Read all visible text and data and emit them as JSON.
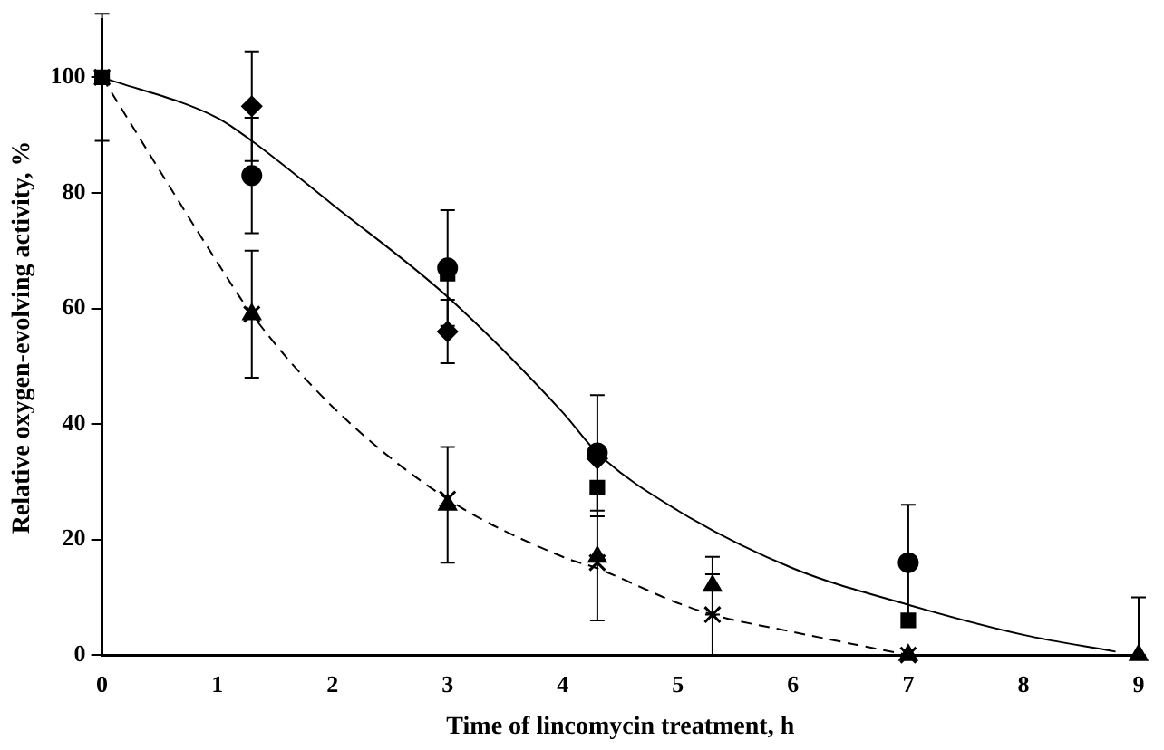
{
  "chart_data": {
    "type": "scatter",
    "xlabel": "Time of lincomycin treatment, h",
    "ylabel": "Relative oxygen-evolving activity, %",
    "xlim": [
      0,
      9
    ],
    "xticks": [
      0,
      1,
      2,
      3,
      4,
      5,
      6,
      7,
      8,
      9
    ],
    "ylim": [
      0,
      110
    ],
    "yticks": [
      0,
      20,
      40,
      60,
      80,
      100
    ],
    "grid": false,
    "legend": false,
    "series": [
      {
        "type": "line",
        "color": "#000000",
        "marker": "none",
        "line_style": "solid",
        "x": [
          0,
          1,
          1.3,
          2,
          3,
          4,
          4.3,
          5,
          6,
          7,
          8,
          8.8
        ],
        "values": [
          100,
          93,
          89,
          78,
          62,
          42,
          35,
          25,
          15,
          8.7,
          3.5,
          0.6
        ]
      },
      {
        "type": "line",
        "color": "#000000",
        "marker": "none",
        "line_style": "dashed",
        "x": [
          0,
          1,
          1.3,
          2,
          3,
          4,
          4.3,
          5,
          5.3,
          6,
          7
        ],
        "values": [
          100,
          68,
          59,
          43,
          27,
          17,
          15,
          9,
          7,
          4,
          0
        ]
      },
      {
        "color": "#000000",
        "marker": "diamond",
        "x": [
          1.3,
          3,
          4.3
        ],
        "values": [
          95,
          56,
          34
        ],
        "errors": [
          9.5,
          5.5,
          null
        ]
      },
      {
        "color": "#000000",
        "marker": "circle",
        "x": [
          1.3,
          3,
          4.3,
          7
        ],
        "values": [
          83,
          67,
          35,
          16
        ],
        "errors": [
          10,
          10,
          10,
          10
        ]
      },
      {
        "color": "#000000",
        "marker": "square",
        "x": [
          0,
          3,
          4.3,
          7
        ],
        "values": [
          100,
          66,
          29,
          6
        ],
        "errors": [
          11,
          null,
          5,
          null
        ]
      },
      {
        "color": "#000000",
        "marker": "triangle",
        "x": [
          1.3,
          3,
          4.3,
          5.3,
          7,
          9
        ],
        "values": [
          59,
          26,
          17,
          12,
          0,
          0
        ],
        "errors": [
          11,
          10,
          11,
          5,
          null,
          [
            0,
            10
          ]
        ]
      },
      {
        "color": "#000000",
        "marker": "cross",
        "x": [
          0,
          1.3,
          3,
          4.3,
          5.3,
          7
        ],
        "values": [
          100,
          59,
          27,
          16,
          7,
          0
        ],
        "errors": [
          null,
          null,
          null,
          null,
          7,
          null
        ]
      }
    ]
  }
}
